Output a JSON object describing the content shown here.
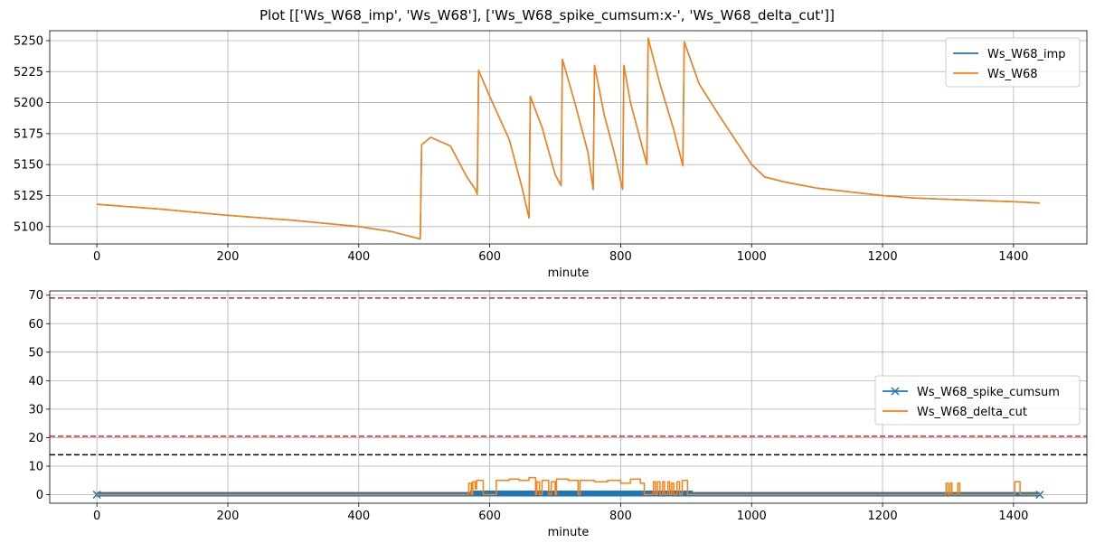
{
  "title": "Plot [['Ws_W68_imp', 'Ws_W68'], ['Ws_W68_spike_cumsum:x-', 'Ws_W68_delta_cut']]",
  "colors": {
    "blue": "#1f77b4",
    "orange": "#ff7f0e",
    "red": "#d62728",
    "black": "#000000",
    "grid": "#b0b0b0"
  },
  "chart_data": [
    {
      "type": "line",
      "xlabel": "minute",
      "ylabel": "",
      "xlim": [
        -72,
        1512
      ],
      "ylim": [
        5086,
        5258
      ],
      "xticks": [
        0,
        200,
        400,
        600,
        800,
        1000,
        1200,
        1400
      ],
      "yticks": [
        5100,
        5125,
        5150,
        5175,
        5200,
        5225,
        5250
      ],
      "grid": true,
      "legend": "top-right",
      "series": [
        {
          "name": "Ws_W68_imp",
          "color": "#1f77b4",
          "points": [
            [
              0,
              5118
            ],
            [
              100,
              5114
            ],
            [
              200,
              5109
            ],
            [
              300,
              5105
            ],
            [
              400,
              5100
            ],
            [
              450,
              5096
            ],
            [
              494,
              5090
            ],
            [
              496,
              5166
            ],
            [
              510,
              5172
            ],
            [
              540,
              5165
            ],
            [
              565,
              5140
            ],
            [
              578,
              5130
            ],
            [
              581,
              5126
            ],
            [
              583,
              5226
            ],
            [
              600,
              5205
            ],
            [
              630,
              5170
            ],
            [
              650,
              5130
            ],
            [
              660,
              5107
            ],
            [
              662,
              5205
            ],
            [
              680,
              5180
            ],
            [
              700,
              5142
            ],
            [
              709,
              5133
            ],
            [
              711,
              5235
            ],
            [
              730,
              5200
            ],
            [
              750,
              5160
            ],
            [
              758,
              5130
            ],
            [
              760,
              5230
            ],
            [
              775,
              5190
            ],
            [
              790,
              5160
            ],
            [
              803,
              5130
            ],
            [
              805,
              5230
            ],
            [
              815,
              5200
            ],
            [
              830,
              5170
            ],
            [
              840,
              5150
            ],
            [
              842,
              5252
            ],
            [
              860,
              5215
            ],
            [
              880,
              5180
            ],
            [
              895,
              5149
            ],
            [
              897,
              5249
            ],
            [
              920,
              5215
            ],
            [
              950,
              5190
            ],
            [
              975,
              5170
            ],
            [
              1000,
              5150
            ],
            [
              1020,
              5140
            ],
            [
              1050,
              5136
            ],
            [
              1100,
              5131
            ],
            [
              1150,
              5128
            ],
            [
              1200,
              5125
            ],
            [
              1250,
              5123
            ],
            [
              1300,
              5122
            ],
            [
              1350,
              5121
            ],
            [
              1400,
              5120
            ],
            [
              1440,
              5119
            ]
          ]
        },
        {
          "name": "Ws_W68",
          "color": "#ff7f0e",
          "points": [
            [
              0,
              5118
            ],
            [
              100,
              5114
            ],
            [
              200,
              5109
            ],
            [
              300,
              5105
            ],
            [
              400,
              5100
            ],
            [
              450,
              5096
            ],
            [
              494,
              5090
            ],
            [
              496,
              5166
            ],
            [
              510,
              5172
            ],
            [
              540,
              5165
            ],
            [
              565,
              5140
            ],
            [
              578,
              5130
            ],
            [
              581,
              5126
            ],
            [
              583,
              5226
            ],
            [
              600,
              5205
            ],
            [
              630,
              5170
            ],
            [
              650,
              5130
            ],
            [
              660,
              5107
            ],
            [
              662,
              5205
            ],
            [
              680,
              5180
            ],
            [
              700,
              5142
            ],
            [
              709,
              5133
            ],
            [
              711,
              5235
            ],
            [
              730,
              5200
            ],
            [
              750,
              5160
            ],
            [
              758,
              5130
            ],
            [
              760,
              5230
            ],
            [
              775,
              5190
            ],
            [
              790,
              5160
            ],
            [
              803,
              5130
            ],
            [
              805,
              5230
            ],
            [
              815,
              5200
            ],
            [
              830,
              5170
            ],
            [
              840,
              5150
            ],
            [
              842,
              5252
            ],
            [
              860,
              5215
            ],
            [
              880,
              5180
            ],
            [
              895,
              5149
            ],
            [
              897,
              5249
            ],
            [
              920,
              5215
            ],
            [
              950,
              5190
            ],
            [
              975,
              5170
            ],
            [
              1000,
              5150
            ],
            [
              1020,
              5140
            ],
            [
              1050,
              5136
            ],
            [
              1100,
              5131
            ],
            [
              1150,
              5128
            ],
            [
              1200,
              5125
            ],
            [
              1250,
              5123
            ],
            [
              1300,
              5122
            ],
            [
              1350,
              5121
            ],
            [
              1400,
              5120
            ],
            [
              1440,
              5119
            ]
          ]
        }
      ]
    },
    {
      "type": "line",
      "xlabel": "minute",
      "ylabel": "",
      "xlim": [
        -72,
        1512
      ],
      "ylim": [
        -3,
        71.5
      ],
      "xticks": [
        0,
        200,
        400,
        600,
        800,
        1000,
        1200,
        1400
      ],
      "yticks": [
        0,
        10,
        20,
        30,
        40,
        50,
        60,
        70
      ],
      "grid": true,
      "legend": "center-right",
      "hlines": [
        {
          "y": 69,
          "color": "#d62728",
          "style": "dashed"
        },
        {
          "y": 20.5,
          "color": "#d62728",
          "style": "dashed"
        },
        {
          "y": 14,
          "color": "#000000",
          "style": "dashed"
        }
      ],
      "series": [
        {
          "name": "Ws_W68_spike_cumsum",
          "color": "#1f77b4",
          "marker": "x",
          "x_range": [
            0,
            1440
          ],
          "band": [
            {
              "x": [
                0,
                570
              ],
              "y": [
                0,
                0.3
              ]
            },
            {
              "x": [
                570,
                910
              ],
              "y": [
                0,
                0.8
              ]
            },
            {
              "x": [
                910,
                1440
              ],
              "y": [
                0,
                0.3
              ]
            }
          ]
        },
        {
          "name": "Ws_W68_delta_cut",
          "color": "#ff7f0e",
          "points": [
            [
              0,
              0
            ],
            [
              568,
              0
            ],
            [
              568,
              4
            ],
            [
              572,
              4
            ],
            [
              572,
              0
            ],
            [
              574,
              0
            ],
            [
              574,
              4.5
            ],
            [
              578,
              4.5
            ],
            [
              578,
              2
            ],
            [
              580,
              2
            ],
            [
              580,
              5
            ],
            [
              590,
              5
            ],
            [
              590,
              0
            ],
            [
              610,
              0
            ],
            [
              610,
              5
            ],
            [
              630,
              5
            ],
            [
              630,
              5.5
            ],
            [
              645,
              5.5
            ],
            [
              645,
              5
            ],
            [
              660,
              5
            ],
            [
              660,
              6
            ],
            [
              670,
              6
            ],
            [
              670,
              0
            ],
            [
              672,
              0
            ],
            [
              672,
              4.5
            ],
            [
              676,
              4.5
            ],
            [
              676,
              0
            ],
            [
              680,
              0
            ],
            [
              680,
              5
            ],
            [
              690,
              5
            ],
            [
              690,
              0
            ],
            [
              694,
              0
            ],
            [
              694,
              4.5
            ],
            [
              700,
              4.5
            ],
            [
              700,
              0
            ],
            [
              702,
              0
            ],
            [
              702,
              5.5
            ],
            [
              720,
              5.5
            ],
            [
              720,
              5
            ],
            [
              735,
              5
            ],
            [
              735,
              0
            ],
            [
              738,
              0
            ],
            [
              738,
              5
            ],
            [
              760,
              5
            ],
            [
              760,
              4.5
            ],
            [
              780,
              4.5
            ],
            [
              780,
              5
            ],
            [
              800,
              5
            ],
            [
              800,
              4
            ],
            [
              815,
              4
            ],
            [
              815,
              5.5
            ],
            [
              830,
              5.5
            ],
            [
              830,
              4
            ],
            [
              836,
              4
            ],
            [
              836,
              0
            ],
            [
              850,
              0
            ],
            [
              850,
              4.5
            ],
            [
              853,
              4.5
            ],
            [
              853,
              0
            ],
            [
              856,
              0
            ],
            [
              856,
              4.5
            ],
            [
              860,
              4.5
            ],
            [
              860,
              0
            ],
            [
              864,
              0
            ],
            [
              864,
              4.5
            ],
            [
              867,
              4.5
            ],
            [
              867,
              0
            ],
            [
              872,
              0
            ],
            [
              872,
              4.5
            ],
            [
              875,
              4.5
            ],
            [
              875,
              0
            ],
            [
              878,
              0
            ],
            [
              878,
              4
            ],
            [
              881,
              4
            ],
            [
              881,
              0
            ],
            [
              886,
              0
            ],
            [
              886,
              4.5
            ],
            [
              890,
              4.5
            ],
            [
              890,
              0
            ],
            [
              894,
              0
            ],
            [
              894,
              5
            ],
            [
              902,
              5
            ],
            [
              902,
              0
            ],
            [
              1297,
              0
            ],
            [
              1297,
              4
            ],
            [
              1300,
              4
            ],
            [
              1300,
              0
            ],
            [
              1303,
              0
            ],
            [
              1303,
              4
            ],
            [
              1306,
              4
            ],
            [
              1306,
              0
            ],
            [
              1315,
              0
            ],
            [
              1315,
              4
            ],
            [
              1318,
              4
            ],
            [
              1318,
              0
            ],
            [
              1402,
              0
            ],
            [
              1402,
              4.5
            ],
            [
              1410,
              4.5
            ],
            [
              1410,
              0
            ],
            [
              1440,
              0
            ]
          ]
        }
      ]
    }
  ]
}
